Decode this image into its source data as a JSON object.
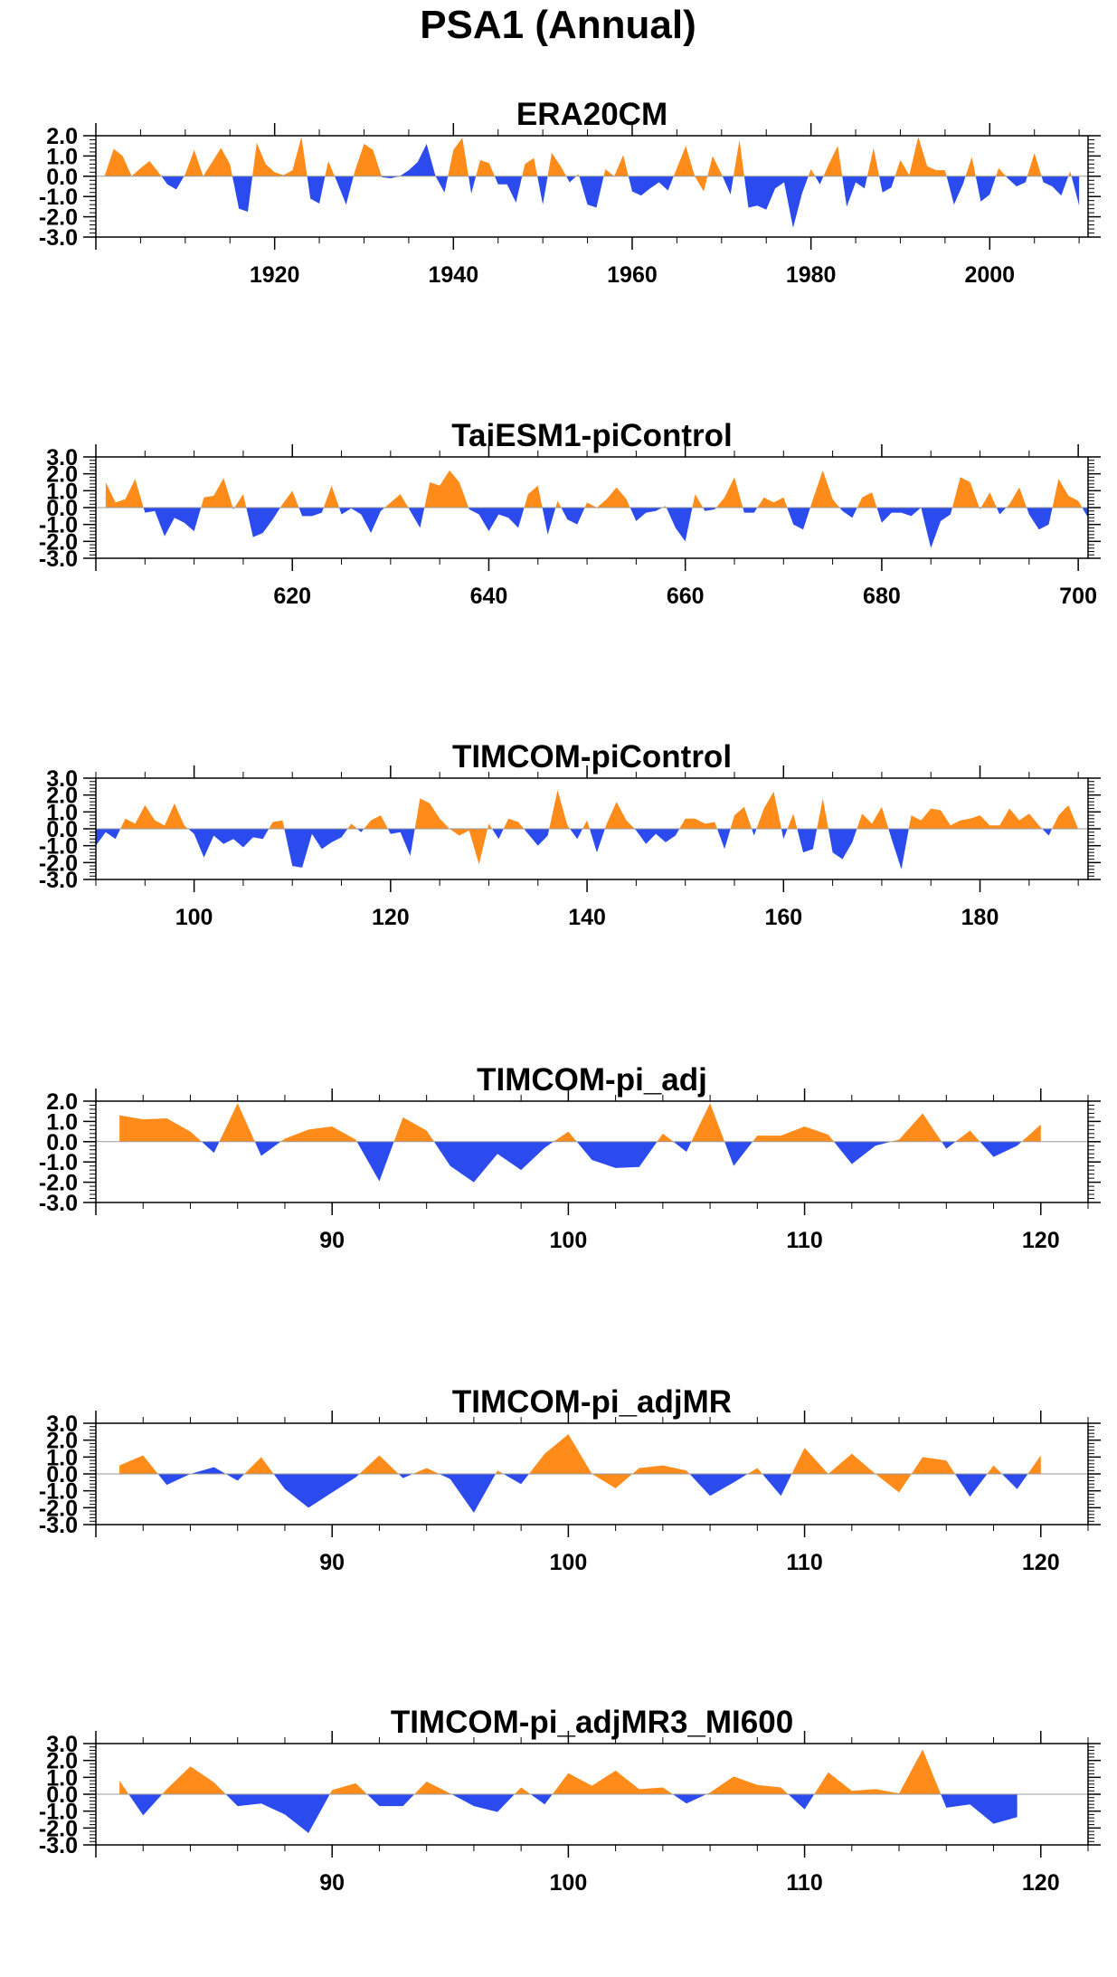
{
  "figure": {
    "title": "PSA1 (Annual)",
    "colors": {
      "positive": "#ff8c1a",
      "negative": "#2b4bef",
      "axis": "#000000"
    }
  },
  "chart_data": [
    {
      "type": "area",
      "title": "ERA20CM",
      "xlim": [
        1900,
        2011
      ],
      "ylim": [
        -3,
        2
      ],
      "yticks": [
        -3,
        -2,
        -1,
        0,
        1,
        2
      ],
      "ytick_labels": [
        "-3.0",
        "-2.0",
        "-1.0",
        "0.0",
        "1.0",
        "2.0"
      ],
      "xticks": [
        1920,
        1940,
        1960,
        1980,
        2000
      ],
      "xtick_labels": [
        "1920",
        "1940",
        "1960",
        "1980",
        "2000"
      ],
      "x_start": 1901,
      "values": [
        0.05,
        1.35,
        1.0,
        0.0,
        0.4,
        0.75,
        0.2,
        -0.4,
        -0.65,
        0.1,
        1.3,
        0.0,
        0.7,
        1.4,
        0.6,
        -1.6,
        -1.75,
        1.65,
        0.6,
        0.2,
        0.05,
        0.3,
        1.95,
        -1.1,
        -1.35,
        0.75,
        -0.3,
        -1.4,
        0.3,
        1.6,
        1.3,
        -0.05,
        -0.1,
        0.0,
        0.3,
        0.7,
        1.6,
        0.0,
        -0.8,
        1.3,
        1.9,
        -0.85,
        0.8,
        0.65,
        -0.4,
        -0.4,
        -1.3,
        0.6,
        0.9,
        -1.4,
        1.15,
        0.5,
        -0.3,
        0.1,
        -1.4,
        -1.55,
        0.35,
        0.0,
        1.05,
        -0.75,
        -0.95,
        -0.6,
        -0.3,
        -0.7,
        0.4,
        1.5,
        0.0,
        -0.75,
        1.0,
        0.1,
        -0.9,
        1.8,
        -1.55,
        -1.45,
        -1.65,
        -0.6,
        -0.3,
        -2.55,
        -0.85,
        0.35,
        -0.4,
        0.6,
        1.5,
        -1.5,
        -0.3,
        -0.6,
        1.4,
        -0.8,
        -0.55,
        0.8,
        0.05,
        1.95,
        0.5,
        0.3,
        0.3,
        -1.4,
        -0.4,
        0.95,
        -1.25,
        -0.9,
        0.4,
        -0.1,
        -0.5,
        -0.3,
        1.15,
        -0.3,
        -0.5,
        -0.95,
        0.25,
        -1.45
      ]
    },
    {
      "type": "area",
      "title": "TaiESM1-piControl",
      "xlim": [
        600,
        701
      ],
      "ylim": [
        -3,
        3
      ],
      "yticks": [
        -3,
        -2,
        -1,
        0,
        1,
        2,
        3
      ],
      "ytick_labels": [
        "-3.0",
        "-2.0",
        "-1.0",
        "0.0",
        "1.0",
        "2.0",
        "3.0"
      ],
      "xticks": [
        620,
        640,
        660,
        680,
        700
      ],
      "xtick_labels": [
        "620",
        "640",
        "660",
        "680",
        "700"
      ],
      "x_start": 601,
      "values": [
        1.5,
        0.3,
        0.5,
        1.7,
        -0.3,
        -0.2,
        -1.7,
        -0.6,
        -0.9,
        -1.4,
        0.6,
        0.7,
        1.75,
        -0.1,
        0.8,
        -1.75,
        -1.5,
        -0.7,
        0.2,
        1.0,
        -0.5,
        -0.5,
        -0.3,
        1.3,
        -0.4,
        -0.05,
        -0.4,
        -1.5,
        -0.2,
        0.3,
        0.8,
        -0.2,
        -1.2,
        1.5,
        1.3,
        2.2,
        1.5,
        -0.1,
        -0.4,
        -1.4,
        -0.4,
        -0.6,
        -1.2,
        0.8,
        1.3,
        -1.6,
        0.4,
        -0.7,
        -1.0,
        0.3,
        0.0,
        0.5,
        1.2,
        0.5,
        -0.8,
        -0.3,
        -0.2,
        0.1,
        -1.2,
        -2.0,
        0.8,
        -0.2,
        -0.1,
        0.6,
        1.8,
        -0.3,
        -0.3,
        0.6,
        0.3,
        0.6,
        -1.0,
        -1.3,
        0.5,
        2.2,
        0.5,
        -0.2,
        -0.6,
        0.6,
        0.9,
        -0.9,
        -0.3,
        -0.3,
        -0.5,
        0.0,
        -2.4,
        -0.8,
        -0.4,
        1.8,
        1.5,
        -0.1,
        0.9,
        -0.4,
        0.2,
        1.2,
        -0.4,
        -1.3,
        -1.0,
        1.7,
        0.7,
        0.4,
        -0.6
      ]
    },
    {
      "type": "area",
      "title": "TIMCOM-piControl",
      "xlim": [
        90,
        191
      ],
      "ylim": [
        -3,
        3
      ],
      "yticks": [
        -3,
        -2,
        -1,
        0,
        1,
        2,
        3
      ],
      "ytick_labels": [
        "-3.0",
        "-2.0",
        "-1.0",
        "0.0",
        "1.0",
        "2.0",
        "3.0"
      ],
      "xticks": [
        100,
        120,
        140,
        160,
        180
      ],
      "xtick_labels": [
        "100",
        "120",
        "140",
        "160",
        "180"
      ],
      "x_start": 90,
      "values": [
        -1.0,
        -0.2,
        -0.6,
        0.6,
        0.3,
        1.4,
        0.5,
        0.2,
        1.5,
        0.2,
        -0.3,
        -1.7,
        -0.4,
        -0.9,
        -0.6,
        -1.1,
        -0.5,
        -0.6,
        0.4,
        0.5,
        -2.2,
        -2.3,
        -0.3,
        -1.2,
        -0.8,
        -0.5,
        0.3,
        -0.2,
        0.5,
        0.8,
        -0.3,
        -0.2,
        -1.6,
        1.8,
        1.5,
        0.6,
        0.0,
        -0.4,
        -0.1,
        -2.1,
        0.3,
        -0.6,
        0.6,
        0.4,
        -0.3,
        -1.0,
        -0.4,
        2.3,
        0.2,
        -0.6,
        0.5,
        -1.4,
        0.3,
        1.6,
        0.5,
        -0.1,
        -0.9,
        -0.3,
        -0.8,
        -0.4,
        0.6,
        0.6,
        0.3,
        0.4,
        -1.2,
        0.8,
        1.3,
        -0.4,
        1.2,
        2.2,
        -0.6,
        0.9,
        -1.4,
        -1.2,
        1.8,
        -1.4,
        -1.8,
        -0.8,
        0.9,
        0.3,
        1.3,
        -0.6,
        -2.4,
        0.8,
        0.5,
        1.2,
        1.1,
        0.2,
        0.5,
        0.6,
        0.8,
        0.2,
        0.2,
        1.2,
        0.5,
        0.9,
        0.2,
        -0.4,
        0.8,
        1.4,
        0.0
      ]
    },
    {
      "type": "area",
      "title": "TIMCOM-pi_adj",
      "xlim": [
        80,
        122
      ],
      "ylim": [
        -3,
        2
      ],
      "yticks": [
        -3,
        -2,
        -1,
        0,
        1,
        2
      ],
      "ytick_labels": [
        "-3.0",
        "-2.0",
        "-1.0",
        "0.0",
        "1.0",
        "2.0"
      ],
      "xticks": [
        90,
        100,
        110,
        120
      ],
      "xtick_labels": [
        "90",
        "100",
        "110",
        "120"
      ],
      "x_start": 81,
      "values": [
        1.3,
        1.1,
        1.15,
        0.5,
        -0.55,
        1.9,
        -0.7,
        0.15,
        0.6,
        0.75,
        0.1,
        -1.95,
        1.2,
        0.55,
        -1.2,
        -2.0,
        -0.6,
        -1.4,
        -0.3,
        0.5,
        -0.9,
        -1.3,
        -1.25,
        0.4,
        -0.5,
        1.9,
        -1.2,
        0.3,
        0.3,
        0.75,
        0.35,
        -1.1,
        -0.2,
        0.1,
        1.4,
        -0.35,
        0.55,
        -0.75,
        -0.2,
        0.85
      ]
    },
    {
      "type": "area",
      "title": "TIMCOM-pi_adjMR",
      "xlim": [
        80,
        122
      ],
      "ylim": [
        -3,
        3
      ],
      "yticks": [
        -3,
        -2,
        -1,
        0,
        1,
        2,
        3
      ],
      "ytick_labels": [
        "-3.0",
        "-2.0",
        "-1.0",
        "0.0",
        "1.0",
        "2.0",
        "3.0"
      ],
      "xticks": [
        90,
        100,
        110,
        120
      ],
      "xtick_labels": [
        "90",
        "100",
        "110",
        "120"
      ],
      "x_start": 81,
      "values": [
        0.5,
        1.1,
        -0.65,
        0.0,
        0.4,
        -0.4,
        1.0,
        -0.9,
        -2.0,
        -1.1,
        -0.2,
        1.1,
        -0.25,
        0.35,
        -0.3,
        -2.3,
        0.2,
        -0.6,
        1.2,
        2.35,
        0.0,
        -0.85,
        0.35,
        0.5,
        0.2,
        -1.3,
        -0.5,
        0.35,
        -1.3,
        1.55,
        0.0,
        1.2,
        0.0,
        -1.1,
        1.0,
        0.8,
        -1.35,
        0.5,
        -0.9,
        1.1
      ]
    },
    {
      "type": "area",
      "title": "TIMCOM-pi_adjMR3_MI600",
      "xlim": [
        80,
        122
      ],
      "ylim": [
        -3,
        3
      ],
      "yticks": [
        -3,
        -2,
        -1,
        0,
        1,
        2,
        3
      ],
      "ytick_labels": [
        "-3.0",
        "-2.0",
        "-1.0",
        "0.0",
        "1.0",
        "2.0",
        "3.0"
      ],
      "xticks": [
        90,
        100,
        110,
        120
      ],
      "xtick_labels": [
        "90",
        "100",
        "110",
        "120"
      ],
      "x_start": 81,
      "values": [
        0.8,
        -1.25,
        0.3,
        1.65,
        0.7,
        -0.7,
        -0.55,
        -1.2,
        -2.3,
        0.25,
        0.65,
        -0.7,
        -0.7,
        0.75,
        0.05,
        -0.7,
        -1.05,
        0.4,
        -0.6,
        1.25,
        0.5,
        1.4,
        0.3,
        0.4,
        -0.55,
        0.1,
        1.05,
        0.55,
        0.4,
        -0.9,
        1.3,
        0.2,
        0.3,
        0.05,
        2.65,
        -0.8,
        -0.6,
        -1.75,
        -1.35
      ]
    }
  ]
}
